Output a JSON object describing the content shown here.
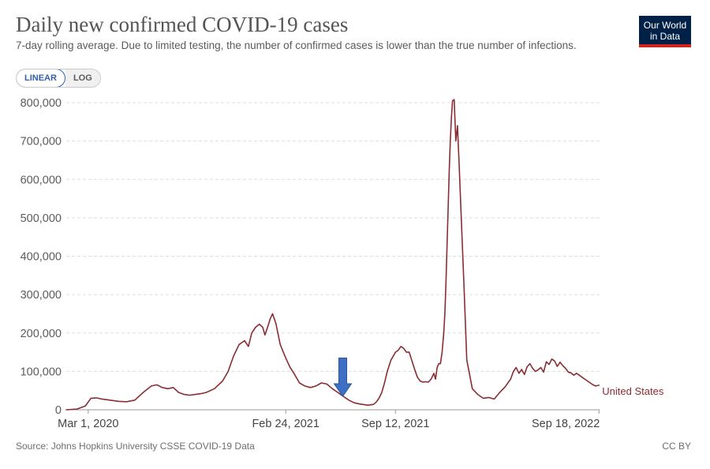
{
  "header": {
    "title": "Daily new confirmed COVID-19 cases",
    "subtitle": "7-day rolling average. Due to limited testing, the number of confirmed cases is lower than the true number of infections."
  },
  "logo": {
    "line1": "Our World",
    "line2": "in Data"
  },
  "scale_toggle": {
    "linear_label": "LINEAR",
    "log_label": "LOG",
    "selected": "LINEAR"
  },
  "footer": {
    "source": "Source: Johns Hopkins University CSSE COVID-19 Data",
    "license": "CC BY"
  },
  "colors": {
    "series": "#8b2c33",
    "grid": "#dddddd",
    "axis_text": "#5b5b5b",
    "arrow": "#3d6fc4",
    "arrow_stroke": "#2b55a0"
  },
  "chart_data": {
    "type": "line",
    "title": "Daily new confirmed COVID-19 cases",
    "xlabel": "",
    "ylabel": "",
    "ylim": [
      0,
      800000
    ],
    "yticks": [
      0,
      100000,
      200000,
      300000,
      400000,
      500000,
      600000,
      700000,
      800000
    ],
    "ytick_labels": [
      "0",
      "100,000",
      "200,000",
      "300,000",
      "400,000",
      "500,000",
      "600,000",
      "700,000",
      "800,000"
    ],
    "grid": true,
    "x_unit": "days since Mar 1, 2020",
    "xlim": [
      -40,
      932
    ],
    "xticks": [
      {
        "day": 0,
        "label": "Mar 1, 2020"
      },
      {
        "day": 360,
        "label": "Feb 24, 2021"
      },
      {
        "day": 560,
        "label": "Sep 12, 2021"
      },
      {
        "day": 931,
        "label": "Sep 18, 2022"
      }
    ],
    "annotation": {
      "type": "down-arrow",
      "day": 464,
      "value_from": 135000,
      "value_to": 35000
    },
    "series": [
      {
        "name": "United States",
        "x": [
          -40,
          -20,
          -5,
          5,
          15,
          25,
          40,
          55,
          70,
          85,
          100,
          115,
          125,
          135,
          145,
          155,
          165,
          175,
          185,
          195,
          205,
          215,
          230,
          245,
          255,
          265,
          275,
          285,
          292,
          298,
          305,
          312,
          318,
          322,
          327,
          332,
          336,
          342,
          350,
          360,
          368,
          375,
          385,
          395,
          405,
          415,
          425,
          435,
          445,
          455,
          465,
          475,
          485,
          495,
          505,
          510,
          515,
          520,
          525,
          530,
          535,
          540,
          545,
          552,
          560,
          565,
          570,
          575,
          580,
          585,
          590,
          595,
          600,
          605,
          610,
          615,
          620,
          625,
          630,
          633,
          636,
          639,
          642,
          645,
          648,
          650,
          652,
          654,
          656,
          658,
          660,
          662,
          664,
          667,
          670,
          673,
          676,
          680,
          685,
          690,
          700,
          710,
          720,
          730,
          740,
          750,
          760,
          770,
          775,
          780,
          785,
          790,
          795,
          800,
          805,
          810,
          815,
          820,
          825,
          830,
          835,
          840,
          845,
          850,
          855,
          860,
          865,
          870,
          875,
          880,
          885,
          890,
          895,
          900,
          905,
          910,
          915,
          920,
          925,
          931
        ],
        "values": [
          0,
          2000,
          10000,
          30000,
          31000,
          28000,
          25000,
          22000,
          21000,
          25000,
          45000,
          62000,
          65000,
          58000,
          55000,
          58000,
          45000,
          40000,
          38000,
          40000,
          42000,
          45000,
          55000,
          75000,
          100000,
          140000,
          170000,
          180000,
          165000,
          200000,
          215000,
          223000,
          215000,
          195000,
          215000,
          238000,
          250000,
          225000,
          170000,
          135000,
          110000,
          95000,
          70000,
          62000,
          58000,
          62000,
          70000,
          67000,
          55000,
          45000,
          35000,
          25000,
          18000,
          15000,
          13000,
          12000,
          13000,
          14000,
          20000,
          30000,
          45000,
          70000,
          100000,
          130000,
          150000,
          155000,
          165000,
          160000,
          150000,
          150000,
          128000,
          105000,
          85000,
          75000,
          72000,
          73000,
          72000,
          80000,
          95000,
          80000,
          110000,
          120000,
          120000,
          150000,
          200000,
          250000,
          330000,
          430000,
          520000,
          620000,
          700000,
          760000,
          805000,
          808000,
          700000,
          740000,
          640000,
          500000,
          320000,
          130000,
          55000,
          40000,
          30000,
          32000,
          28000,
          45000,
          60000,
          80000,
          100000,
          110000,
          95000,
          105000,
          92000,
          112000,
          120000,
          108000,
          100000,
          104000,
          110000,
          98000,
          125000,
          118000,
          132000,
          127000,
          113000,
          124000,
          115000,
          108000,
          98000,
          96000,
          90000,
          95000,
          90000,
          85000,
          80000,
          75000,
          70000,
          65000,
          62000,
          64000
        ]
      }
    ]
  }
}
